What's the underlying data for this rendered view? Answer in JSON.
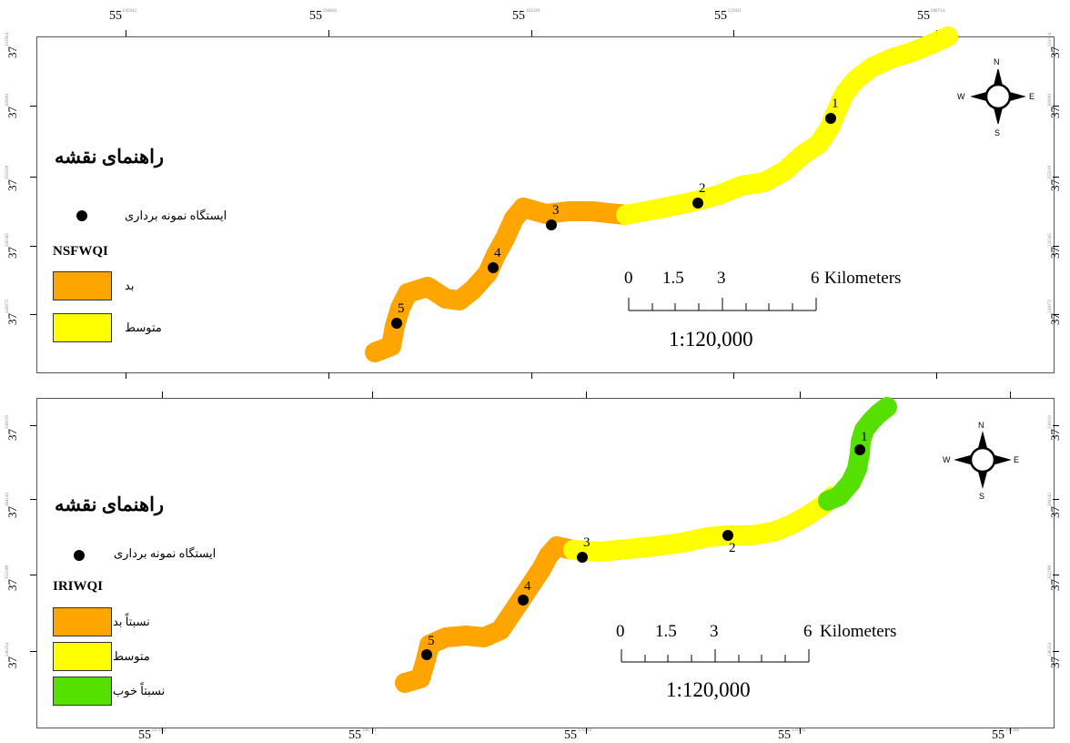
{
  "colors": {
    "bad": "#ffa500",
    "medium": "#ffff00",
    "good": "#55e000",
    "station": "#000000",
    "frame": "#555555"
  },
  "top_map": {
    "lon_labels": [
      {
        "deg": "55",
        "sup": "245942"
      },
      {
        "deg": "55",
        "sup": "204836"
      },
      {
        "deg": "55",
        "sup": "163328"
      },
      {
        "deg": "55",
        "sup": "222021"
      },
      {
        "deg": "55",
        "sup": "280714"
      }
    ],
    "lat_labels": [
      {
        "deg": "37",
        "sup": "331904"
      },
      {
        "deg": "37",
        "sup": "309081"
      },
      {
        "deg": "37",
        "sup": "355018"
      },
      {
        "deg": "37",
        "sup": "220345"
      },
      {
        "deg": "37",
        "sup": "243072"
      }
    ],
    "legend": {
      "title": "راهنمای نقشه",
      "station_label": "ایستگاه نمونه برداری",
      "index_name": "NSFWQI",
      "classes": [
        {
          "label": "بد",
          "color": "#ffa500"
        },
        {
          "label": "متوسط",
          "color": "#ffff00"
        }
      ]
    },
    "stations": [
      "1",
      "2",
      "3",
      "4",
      "5"
    ],
    "scale": {
      "numbers": [
        "0",
        "1.5",
        "3",
        "6"
      ],
      "unit": "Kilometers",
      "ratio": "1:120,000"
    },
    "compass": {
      "n": "N",
      "s": "S",
      "e": "E",
      "w": "W"
    }
  },
  "bottom_map": {
    "lon_labels": [
      {
        "deg": "55",
        "sup": "247182"
      },
      {
        "deg": "55",
        "sup": "108733"
      },
      {
        "deg": "55",
        "sup": "170284"
      },
      {
        "deg": "55",
        "sup": "231836"
      },
      {
        "deg": "55",
        "sup": "293386"
      }
    ],
    "lat_labels": [
      {
        "deg": "37",
        "sup": "330010"
      },
      {
        "deg": "37",
        "sup": "284142"
      },
      {
        "deg": "37",
        "sup": "352188"
      },
      {
        "deg": "37",
        "sup": "240254"
      }
    ],
    "legend": {
      "title": "راهنمای نقشه",
      "station_label": "ایستگاه نمونه برداری",
      "index_name": "IRIWQI",
      "classes": [
        {
          "label": "نسبتاً بد",
          "color": "#ffa500"
        },
        {
          "label": "متوسط",
          "color": "#ffff00"
        },
        {
          "label": "نسبتاً خوب",
          "color": "#55e000"
        }
      ]
    },
    "stations": [
      "1",
      "2",
      "3",
      "4",
      "5"
    ],
    "scale": {
      "numbers": [
        "0",
        "1.5",
        "3",
        "6"
      ],
      "unit": "Kilometers",
      "ratio": "1:120,000"
    },
    "compass": {
      "n": "N",
      "s": "S",
      "e": "E",
      "w": "W"
    }
  }
}
